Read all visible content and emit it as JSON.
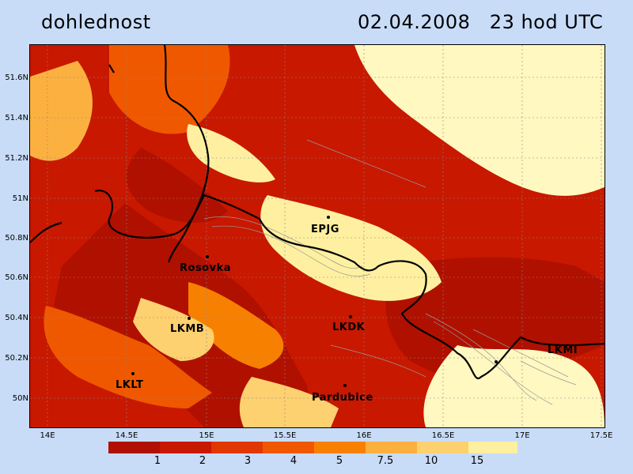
{
  "title": {
    "variable": "dohlednost",
    "datetime": "02.04.2008   23 hod UTC"
  },
  "axes": {
    "latitude_ticks": [
      "51.6N",
      "51.4N",
      "51.2N",
      "51N",
      "50.8N",
      "50.6N",
      "50.4N",
      "50.2N",
      "50N"
    ],
    "longitude_ticks": [
      "14E",
      "14.5E",
      "15E",
      "15.5E",
      "16E",
      "16.5E",
      "17E",
      "17.5E"
    ]
  },
  "legend": {
    "labels": [
      "1",
      "2",
      "3",
      "4",
      "5",
      "7.5",
      "10",
      "15"
    ],
    "colors": [
      "#b01000",
      "#c81800",
      "#e03800",
      "#f05800",
      "#f88000",
      "#fcb040",
      "#fdd070",
      "#fef0a0",
      "#fff8c0"
    ]
  },
  "places": [
    {
      "name": "EPJG"
    },
    {
      "name": "Rosovka"
    },
    {
      "name": "LKMB"
    },
    {
      "name": "LKDK"
    },
    {
      "name": "LKLT"
    },
    {
      "name": "Pardubice"
    },
    {
      "name": "LKMI"
    }
  ]
}
